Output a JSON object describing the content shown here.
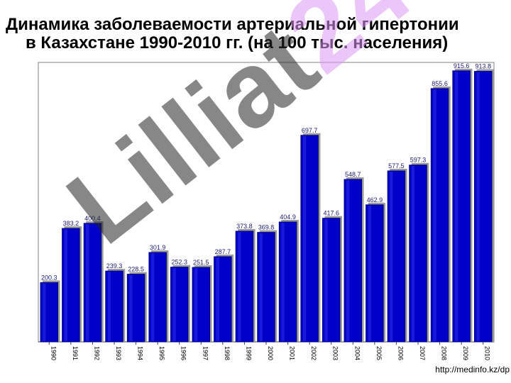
{
  "title": {
    "line1": "Динамика заболеваемости артериальной гипертонии",
    "line2": "в Казахстане 1990-2010 гг.  (на 100 тыс. населения)"
  },
  "source": "http://medinfo.kz/dp",
  "watermark": {
    "part1": "Lilliat",
    "part2": "24"
  },
  "colors": {
    "bar": "#0000c8",
    "bar_shade": "#00007a",
    "label": "#1a1a7a",
    "frame": "#808080"
  },
  "chart_data": {
    "type": "bar",
    "categories": [
      "1990",
      "1991",
      "1992",
      "1993",
      "1994",
      "1995",
      "1996",
      "1997",
      "1998",
      "1999",
      "2000",
      "2001",
      "2002",
      "2003",
      "2004",
      "2005",
      "2006",
      "2007",
      "2008",
      "2009",
      "2010"
    ],
    "values": [
      200.3,
      383.2,
      400.4,
      239.3,
      228.5,
      301.9,
      252.3,
      251.5,
      287.7,
      373.8,
      369.8,
      404.9,
      697.7,
      417.6,
      548.7,
      462.9,
      577.5,
      597.3,
      855.6,
      915.6,
      913.8
    ],
    "data_labels": [
      "200.3",
      "383.2",
      "400.4",
      "239.3",
      "228.5",
      "301.9",
      "252.3",
      "251.5",
      "287.7",
      "373.8",
      "369.8",
      "404.9",
      "697.7",
      "417.6",
      "548.7",
      "462.9",
      "577.5",
      "597.3",
      "855.6",
      "915.6",
      "913.8"
    ],
    "ylim": [
      0,
      920
    ],
    "grid": false
  }
}
